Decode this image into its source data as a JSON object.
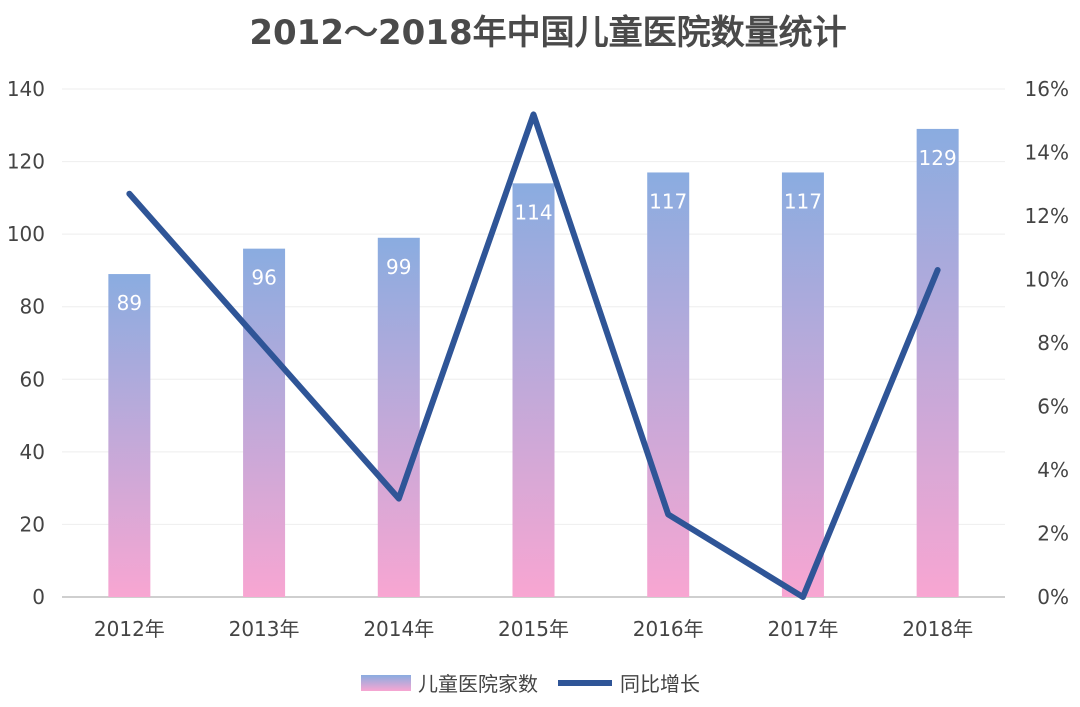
{
  "chart_data": {
    "type": "bar",
    "title": "2012～2018年中国儿童医院数量统计",
    "categories": [
      "2012年",
      "2013年",
      "2014年",
      "2015年",
      "2016年",
      "2017年",
      "2018年"
    ],
    "series": [
      {
        "name": "儿童医院家数",
        "type": "bar",
        "axis": "left",
        "values": [
          89,
          96,
          99,
          114,
          117,
          117,
          129
        ],
        "data_labels": [
          "89",
          "96",
          "99",
          "114",
          "117",
          "117",
          "129"
        ],
        "gradient": [
          "#8aace0",
          "#f8a6d2"
        ]
      },
      {
        "name": "同比增长",
        "type": "line",
        "axis": "right",
        "values": [
          12.7,
          7.9,
          3.1,
          15.2,
          2.6,
          0.0,
          10.3
        ],
        "color": "#2f5597"
      }
    ],
    "y_left": {
      "min": 0,
      "max": 140,
      "ticks": [
        "0",
        "20",
        "40",
        "60",
        "80",
        "100",
        "120",
        "140"
      ]
    },
    "y_right": {
      "min": 0,
      "max": 16,
      "ticks": [
        "0%",
        "2%",
        "4%",
        "6%",
        "8%",
        "10%",
        "12%",
        "14%",
        "16%"
      ]
    },
    "grid": true,
    "legend": "bottom"
  }
}
